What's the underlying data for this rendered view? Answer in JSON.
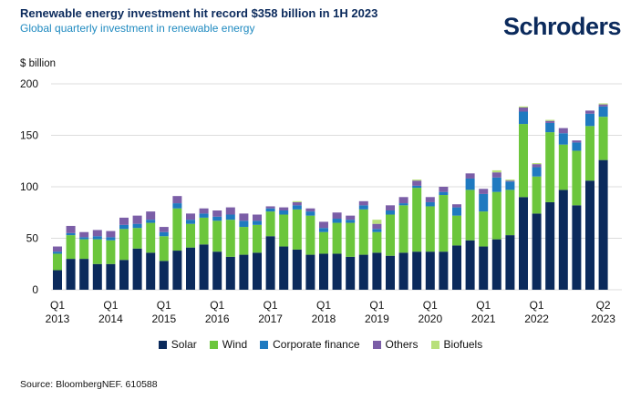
{
  "title": "Renewable energy investment hit record $358 billion in 1H 2023",
  "subtitle": "Global quarterly investment in renewable energy",
  "logo": "Schroders",
  "source": "Source: BloombergNEF. 610588",
  "chart_data": {
    "type": "bar",
    "stacked": true,
    "ylabel": "$ billion",
    "ylim": [
      0,
      200
    ],
    "yticks": [
      0,
      50,
      100,
      150,
      200
    ],
    "grid": true,
    "legend_position": "bottom",
    "x_tick_labels": [
      {
        "index": 0,
        "q": "Q1",
        "year": "2013"
      },
      {
        "index": 4,
        "q": "Q1",
        "year": "2014"
      },
      {
        "index": 8,
        "q": "Q1",
        "year": "2015"
      },
      {
        "index": 12,
        "q": "Q1",
        "year": "2016"
      },
      {
        "index": 16,
        "q": "Q1",
        "year": "2017"
      },
      {
        "index": 20,
        "q": "Q1",
        "year": "2018"
      },
      {
        "index": 24,
        "q": "Q1",
        "year": "2019"
      },
      {
        "index": 28,
        "q": "Q1",
        "year": "2020"
      },
      {
        "index": 32,
        "q": "Q1",
        "year": "2021"
      },
      {
        "index": 36,
        "q": "Q1",
        "year": "2022"
      },
      {
        "index": 41,
        "q": "Q2",
        "year": "2023"
      }
    ],
    "categories": [
      "1Q13",
      "2Q13",
      "3Q13",
      "4Q13",
      "1Q14",
      "2Q14",
      "3Q14",
      "4Q14",
      "1Q15",
      "2Q15",
      "3Q15",
      "4Q15",
      "1Q16",
      "2Q16",
      "3Q16",
      "4Q16",
      "1Q17",
      "2Q17",
      "3Q17",
      "4Q17",
      "1Q18",
      "2Q18",
      "3Q18",
      "4Q18",
      "1Q19",
      "2Q19",
      "3Q19",
      "4Q19",
      "1Q20",
      "2Q20",
      "3Q20",
      "4Q20",
      "1Q21",
      "2Q21",
      "3Q21",
      "4Q21",
      "1Q22",
      "2Q22",
      "3Q22",
      "4Q22",
      "1Q23",
      "2Q23"
    ],
    "series": [
      {
        "name": "Solar",
        "color": "#0b2a5c",
        "values": [
          19,
          30,
          30,
          25,
          25,
          29,
          40,
          36,
          28,
          38,
          41,
          44,
          37,
          32,
          34,
          36,
          52,
          42,
          39,
          34,
          35,
          35,
          32,
          34,
          36,
          33,
          36,
          37,
          37,
          37,
          43,
          48,
          42,
          49,
          53,
          90,
          74,
          85,
          97,
          82,
          106,
          126
        ]
      },
      {
        "name": "Wind",
        "color": "#6cc63c",
        "values": [
          16,
          23,
          19,
          24,
          23,
          30,
          20,
          29,
          24,
          41,
          23,
          26,
          30,
          36,
          27,
          27,
          24,
          31,
          39,
          38,
          21,
          30,
          33,
          44,
          20,
          40,
          46,
          62,
          44,
          55,
          29,
          49,
          34,
          46,
          44,
          71,
          36,
          68,
          44,
          53,
          53,
          42
        ]
      },
      {
        "name": "Corporate finance",
        "color": "#1f7ac0",
        "values": [
          2,
          2,
          2,
          3,
          3,
          4,
          4,
          3,
          4,
          5,
          4,
          4,
          4,
          5,
          6,
          4,
          3,
          4,
          4,
          4,
          4,
          4,
          3,
          4,
          3,
          4,
          2,
          2,
          4,
          3,
          8,
          11,
          17,
          14,
          8,
          12,
          9,
          9,
          11,
          8,
          12,
          10
        ]
      },
      {
        "name": "Others",
        "color": "#7b5ea7",
        "values": [
          5,
          7,
          5,
          6,
          6,
          7,
          8,
          8,
          5,
          7,
          6,
          5,
          6,
          7,
          7,
          6,
          2,
          3,
          3,
          3,
          6,
          6,
          4,
          4,
          5,
          5,
          6,
          5,
          5,
          5,
          3,
          5,
          5,
          5,
          1,
          4,
          3,
          2,
          5,
          2,
          3,
          2
        ]
      },
      {
        "name": "Biofuels",
        "color": "#b8e07a",
        "values": [
          0,
          0,
          0,
          0,
          0,
          0,
          0,
          0,
          0,
          0,
          0,
          0,
          0,
          0,
          0,
          0,
          0,
          0,
          1,
          0,
          0,
          0,
          0,
          0,
          4,
          0,
          0,
          1,
          0,
          0,
          0,
          0,
          0,
          2,
          1,
          1,
          1,
          1,
          0,
          0,
          0,
          1
        ]
      }
    ]
  }
}
